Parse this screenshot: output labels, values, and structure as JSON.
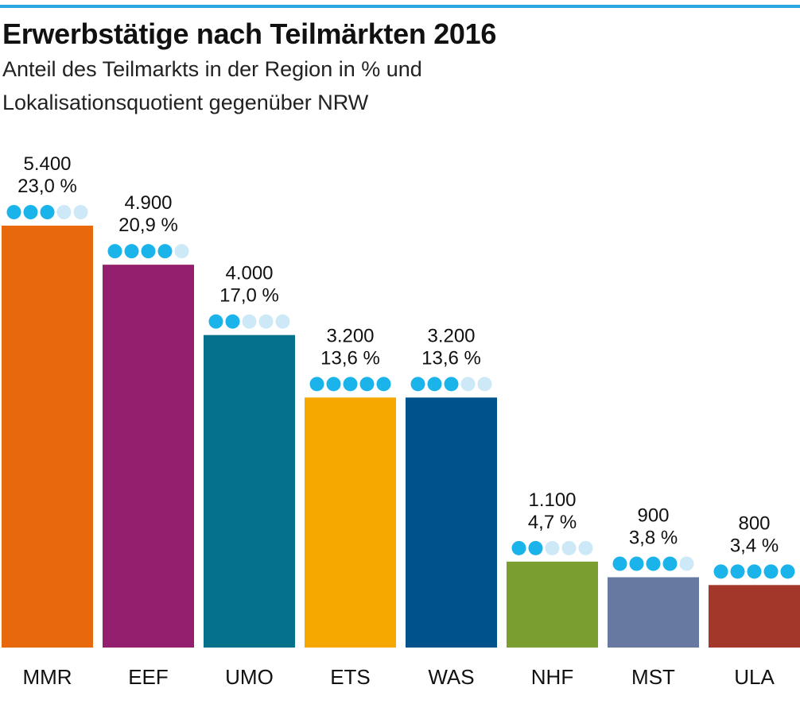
{
  "title": "Erwerbstätige nach Teilmärkten 2016",
  "subtitle_line1": "Anteil des Teilmarkts in der Region in % und",
  "subtitle_line2": "Lokalisationsquotient gegenüber NRW",
  "colors": {
    "accent_rule": "#29a8e0",
    "dot_filled": "#1ab3ea",
    "dot_empty": "#cde9f7"
  },
  "chart_data": {
    "type": "bar",
    "categories": [
      "MMR",
      "EEF",
      "UMO",
      "ETS",
      "WAS",
      "NHF",
      "MST",
      "ULA"
    ],
    "values": [
      5400,
      4900,
      4000,
      3200,
      3200,
      1100,
      900,
      800
    ],
    "value_labels": [
      "5.400",
      "4.900",
      "4.000",
      "3.200",
      "3.200",
      "1.100",
      "900",
      "800"
    ],
    "percent_labels": [
      "23,0 %",
      "20,9 %",
      "17,0 %",
      "13,6 %",
      "13,6 %",
      "4,7 %",
      "3,8 %",
      "3,4 %"
    ],
    "localization_dots": [
      3,
      4,
      2,
      5,
      3,
      2,
      4,
      5
    ],
    "localization_dots_max": 5,
    "bar_colors": [
      "#e8690c",
      "#941f6f",
      "#06718b",
      "#f6a800",
      "#00528c",
      "#7a9f30",
      "#6779a0",
      "#a33729"
    ],
    "ylim": [
      0,
      5400
    ],
    "grid": false
  }
}
